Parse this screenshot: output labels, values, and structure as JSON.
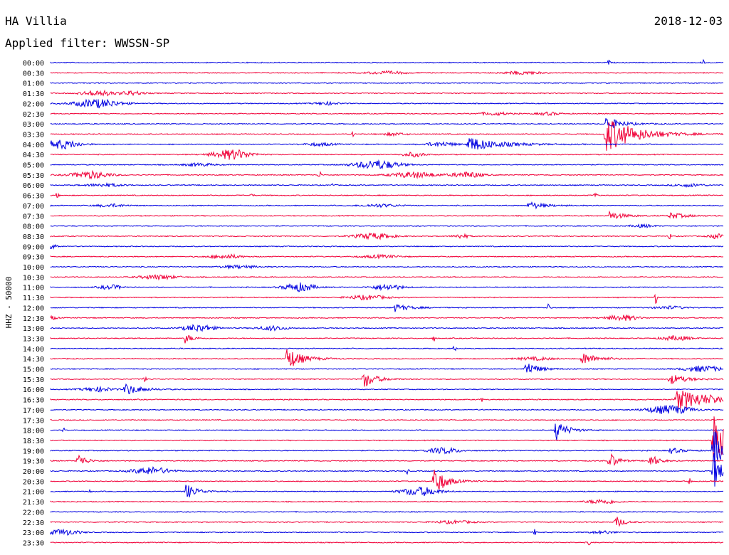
{
  "header": {
    "station": "HA Villia",
    "date": "2018-12-03",
    "filter_label": "Applied filter: WWSSN-SP"
  },
  "chart_data": {
    "type": "line",
    "title": "HA Villia",
    "ylabel": "HHZ - 50000",
    "colors": [
      "#0000e0",
      "#f00038"
    ],
    "row_labels": [
      "00:00",
      "00:30",
      "01:00",
      "01:30",
      "02:00",
      "02:30",
      "03:00",
      "03:30",
      "04:00",
      "04:30",
      "05:00",
      "05:30",
      "06:00",
      "06:30",
      "07:00",
      "07:30",
      "08:00",
      "08:30",
      "09:00",
      "09:30",
      "10:00",
      "10:30",
      "11:00",
      "11:30",
      "12:00",
      "12:30",
      "13:00",
      "13:30",
      "14:00",
      "14:30",
      "15:00",
      "15:30",
      "16:00",
      "16:30",
      "17:00",
      "17:30",
      "18:00",
      "18:30",
      "19:00",
      "19:30",
      "20:00",
      "20:30",
      "21:00",
      "21:30",
      "22:00",
      "22:30",
      "23:00",
      "23:30"
    ],
    "x_minutes_per_row": 30,
    "events": [
      {
        "row": 0,
        "t": 0.97,
        "amp": 7,
        "dur": 0.006,
        "shape": "spike"
      },
      {
        "row": 0,
        "t": 0.83,
        "amp": 3,
        "dur": 0.002,
        "shape": "spike"
      },
      {
        "row": 1,
        "t": 0.5,
        "amp": 2,
        "dur": 0.05,
        "shape": "burst"
      },
      {
        "row": 1,
        "t": 0.7,
        "amp": 2,
        "dur": 0.05,
        "shape": "burst"
      },
      {
        "row": 3,
        "t": 0.07,
        "amp": 4,
        "dur": 0.04,
        "shape": "burst"
      },
      {
        "row": 3,
        "t": 0.12,
        "amp": 3,
        "dur": 0.03,
        "shape": "burst"
      },
      {
        "row": 4,
        "t": 0.07,
        "amp": 6,
        "dur": 0.06,
        "shape": "burst"
      },
      {
        "row": 4,
        "t": 0.41,
        "amp": 2,
        "dur": 0.03,
        "shape": "burst"
      },
      {
        "row": 5,
        "t": 0.66,
        "amp": 2,
        "dur": 0.04,
        "shape": "burst"
      },
      {
        "row": 5,
        "t": 0.74,
        "amp": 2,
        "dur": 0.03,
        "shape": "burst"
      },
      {
        "row": 6,
        "t": 0.825,
        "amp": 10,
        "dur": 0.02,
        "shape": "quake"
      },
      {
        "row": 7,
        "t": 0.825,
        "amp": 26,
        "dur": 0.04,
        "shape": "quake"
      },
      {
        "row": 7,
        "t": 0.45,
        "amp": 6,
        "dur": 0.01,
        "shape": "spike"
      },
      {
        "row": 7,
        "t": 0.51,
        "amp": 2,
        "dur": 0.03,
        "shape": "burst"
      },
      {
        "row": 8,
        "t": 0.015,
        "amp": 6,
        "dur": 0.05,
        "shape": "burst"
      },
      {
        "row": 8,
        "t": 0.62,
        "amp": 11,
        "dur": 0.04,
        "shape": "quake"
      },
      {
        "row": 8,
        "t": 0.58,
        "amp": 3,
        "dur": 0.04,
        "shape": "burst"
      },
      {
        "row": 8,
        "t": 0.4,
        "amp": 2,
        "dur": 0.04,
        "shape": "burst"
      },
      {
        "row": 9,
        "t": 0.27,
        "amp": 7,
        "dur": 0.05,
        "shape": "burst"
      },
      {
        "row": 9,
        "t": 0.54,
        "amp": 3,
        "dur": 0.03,
        "shape": "burst"
      },
      {
        "row": 10,
        "t": 0.485,
        "amp": 6,
        "dur": 0.06,
        "shape": "burst"
      },
      {
        "row": 10,
        "t": 0.22,
        "amp": 2,
        "dur": 0.04,
        "shape": "burst"
      },
      {
        "row": 11,
        "t": 0.06,
        "amp": 5,
        "dur": 0.05,
        "shape": "burst"
      },
      {
        "row": 11,
        "t": 0.54,
        "amp": 4,
        "dur": 0.06,
        "shape": "burst"
      },
      {
        "row": 11,
        "t": 0.4,
        "amp": 5,
        "dur": 0.01,
        "shape": "spike"
      },
      {
        "row": 11,
        "t": 0.62,
        "amp": 4,
        "dur": 0.04,
        "shape": "burst"
      },
      {
        "row": 12,
        "t": 0.08,
        "amp": 2,
        "dur": 0.05,
        "shape": "burst"
      },
      {
        "row": 12,
        "t": 0.42,
        "amp": 3,
        "dur": 0.01,
        "shape": "spike"
      },
      {
        "row": 12,
        "t": 0.95,
        "amp": 2,
        "dur": 0.04,
        "shape": "burst"
      },
      {
        "row": 13,
        "t": 0.01,
        "amp": 4,
        "dur": 0.005,
        "shape": "spike"
      },
      {
        "row": 13,
        "t": 0.3,
        "amp": 3,
        "dur": 0.005,
        "shape": "spike"
      },
      {
        "row": 13,
        "t": 0.81,
        "amp": 4,
        "dur": 0.005,
        "shape": "spike"
      },
      {
        "row": 14,
        "t": 0.71,
        "amp": 6,
        "dur": 0.02,
        "shape": "quake"
      },
      {
        "row": 14,
        "t": 0.09,
        "amp": 2,
        "dur": 0.04,
        "shape": "burst"
      },
      {
        "row": 14,
        "t": 0.49,
        "amp": 2,
        "dur": 0.05,
        "shape": "burst"
      },
      {
        "row": 15,
        "t": 0.83,
        "amp": 6,
        "dur": 0.02,
        "shape": "quake"
      },
      {
        "row": 15,
        "t": 0.92,
        "amp": 5,
        "dur": 0.02,
        "shape": "quake"
      },
      {
        "row": 16,
        "t": 0.88,
        "amp": 2,
        "dur": 0.03,
        "shape": "burst"
      },
      {
        "row": 17,
        "t": 0.48,
        "amp": 4,
        "dur": 0.05,
        "shape": "burst"
      },
      {
        "row": 17,
        "t": 0.61,
        "amp": 3,
        "dur": 0.02,
        "shape": "burst"
      },
      {
        "row": 17,
        "t": 0.92,
        "amp": 5,
        "dur": 0.01,
        "shape": "spike"
      },
      {
        "row": 17,
        "t": 0.99,
        "amp": 3,
        "dur": 0.02,
        "shape": "burst"
      },
      {
        "row": 18,
        "t": 0.0,
        "amp": 3,
        "dur": 0.02,
        "shape": "burst"
      },
      {
        "row": 19,
        "t": 0.26,
        "amp": 3,
        "dur": 0.04,
        "shape": "burst"
      },
      {
        "row": 19,
        "t": 0.49,
        "amp": 2,
        "dur": 0.05,
        "shape": "burst"
      },
      {
        "row": 20,
        "t": 0.28,
        "amp": 2,
        "dur": 0.05,
        "shape": "burst"
      },
      {
        "row": 21,
        "t": 0.16,
        "amp": 3,
        "dur": 0.05,
        "shape": "burst"
      },
      {
        "row": 22,
        "t": 0.09,
        "amp": 3,
        "dur": 0.03,
        "shape": "burst"
      },
      {
        "row": 22,
        "t": 0.37,
        "amp": 6,
        "dur": 0.04,
        "shape": "burst"
      },
      {
        "row": 22,
        "t": 0.5,
        "amp": 4,
        "dur": 0.04,
        "shape": "burst"
      },
      {
        "row": 23,
        "t": 0.47,
        "amp": 3,
        "dur": 0.05,
        "shape": "burst"
      },
      {
        "row": 23,
        "t": 0.9,
        "amp": 9,
        "dur": 0.01,
        "shape": "spike"
      },
      {
        "row": 24,
        "t": 0.51,
        "amp": 6,
        "dur": 0.02,
        "shape": "quake"
      },
      {
        "row": 24,
        "t": 0.74,
        "amp": 5,
        "dur": 0.01,
        "shape": "spike"
      },
      {
        "row": 24,
        "t": 0.92,
        "amp": 2,
        "dur": 0.04,
        "shape": "burst"
      },
      {
        "row": 25,
        "t": 0.0,
        "amp": 3,
        "dur": 0.015,
        "shape": "burst"
      },
      {
        "row": 25,
        "t": 0.85,
        "amp": 4,
        "dur": 0.04,
        "shape": "burst"
      },
      {
        "row": 26,
        "t": 0.22,
        "amp": 5,
        "dur": 0.04,
        "shape": "burst"
      },
      {
        "row": 26,
        "t": 0.33,
        "amp": 3,
        "dur": 0.04,
        "shape": "burst"
      },
      {
        "row": 27,
        "t": 0.2,
        "amp": 7,
        "dur": 0.01,
        "shape": "quake"
      },
      {
        "row": 27,
        "t": 0.57,
        "amp": 4,
        "dur": 0.005,
        "shape": "spike"
      },
      {
        "row": 27,
        "t": 0.93,
        "amp": 3,
        "dur": 0.04,
        "shape": "burst"
      },
      {
        "row": 28,
        "t": 0.6,
        "amp": 6,
        "dur": 0.005,
        "shape": "spike"
      },
      {
        "row": 29,
        "t": 0.35,
        "amp": 17,
        "dur": 0.02,
        "shape": "quake"
      },
      {
        "row": 29,
        "t": 0.79,
        "amp": 9,
        "dur": 0.02,
        "shape": "quake"
      },
      {
        "row": 29,
        "t": 0.72,
        "amp": 2,
        "dur": 0.05,
        "shape": "burst"
      },
      {
        "row": 30,
        "t": 0.705,
        "amp": 12,
        "dur": 0.015,
        "shape": "quake"
      },
      {
        "row": 30,
        "t": 0.97,
        "amp": 4,
        "dur": 0.05,
        "shape": "burst"
      },
      {
        "row": 31,
        "t": 0.465,
        "amp": 14,
        "dur": 0.015,
        "shape": "quake"
      },
      {
        "row": 31,
        "t": 0.14,
        "amp": 4,
        "dur": 0.005,
        "shape": "spike"
      },
      {
        "row": 31,
        "t": 0.92,
        "amp": 8,
        "dur": 0.02,
        "shape": "quake"
      },
      {
        "row": 32,
        "t": 0.11,
        "amp": 9,
        "dur": 0.02,
        "shape": "quake"
      },
      {
        "row": 32,
        "t": 0.07,
        "amp": 3,
        "dur": 0.04,
        "shape": "burst"
      },
      {
        "row": 33,
        "t": 0.93,
        "amp": 14,
        "dur": 0.06,
        "shape": "quake"
      },
      {
        "row": 33,
        "t": 0.64,
        "amp": 4,
        "dur": 0.005,
        "shape": "spike"
      },
      {
        "row": 34,
        "t": 0.92,
        "amp": 6,
        "dur": 0.06,
        "shape": "burst"
      },
      {
        "row": 36,
        "t": 0.75,
        "amp": 16,
        "dur": 0.015,
        "shape": "quake"
      },
      {
        "row": 36,
        "t": 0.02,
        "amp": 3,
        "dur": 0.01,
        "shape": "spike"
      },
      {
        "row": 37,
        "t": 0.985,
        "amp": 40,
        "dur": 0.02,
        "shape": "quake"
      },
      {
        "row": 38,
        "t": 0.585,
        "amp": 4,
        "dur": 0.04,
        "shape": "burst"
      },
      {
        "row": 38,
        "t": 0.92,
        "amp": 5,
        "dur": 0.015,
        "shape": "quake"
      },
      {
        "row": 38,
        "t": 0.985,
        "amp": 30,
        "dur": 0.02,
        "shape": "quake"
      },
      {
        "row": 39,
        "t": 0.04,
        "amp": 12,
        "dur": 0.01,
        "shape": "quake"
      },
      {
        "row": 39,
        "t": 0.83,
        "amp": 14,
        "dur": 0.01,
        "shape": "quake"
      },
      {
        "row": 39,
        "t": 0.89,
        "amp": 12,
        "dur": 0.01,
        "shape": "quake"
      },
      {
        "row": 40,
        "t": 0.15,
        "amp": 5,
        "dur": 0.05,
        "shape": "burst"
      },
      {
        "row": 40,
        "t": 0.53,
        "amp": 5,
        "dur": 0.005,
        "shape": "spike"
      },
      {
        "row": 40,
        "t": 0.985,
        "amp": 30,
        "dur": 0.01,
        "shape": "quake"
      },
      {
        "row": 41,
        "t": 0.57,
        "amp": 22,
        "dur": 0.015,
        "shape": "quake"
      },
      {
        "row": 41,
        "t": 0.95,
        "amp": 5,
        "dur": 0.005,
        "shape": "spike"
      },
      {
        "row": 42,
        "t": 0.2,
        "amp": 12,
        "dur": 0.015,
        "shape": "quake"
      },
      {
        "row": 42,
        "t": 0.55,
        "amp": 6,
        "dur": 0.05,
        "shape": "burst"
      },
      {
        "row": 42,
        "t": 0.06,
        "amp": 4,
        "dur": 0.005,
        "shape": "spike"
      },
      {
        "row": 43,
        "t": 0.82,
        "amp": 3,
        "dur": 0.04,
        "shape": "burst"
      },
      {
        "row": 45,
        "t": 0.84,
        "amp": 9,
        "dur": 0.01,
        "shape": "quake"
      },
      {
        "row": 45,
        "t": 0.6,
        "amp": 2,
        "dur": 0.05,
        "shape": "burst"
      },
      {
        "row": 46,
        "t": 0.02,
        "amp": 4,
        "dur": 0.04,
        "shape": "burst"
      },
      {
        "row": 46,
        "t": 0.72,
        "amp": 4,
        "dur": 0.005,
        "shape": "spike"
      },
      {
        "row": 46,
        "t": 0.82,
        "amp": 2,
        "dur": 0.03,
        "shape": "burst"
      },
      {
        "row": 47,
        "t": 0.8,
        "amp": 4,
        "dur": 0.005,
        "shape": "spike"
      }
    ]
  }
}
